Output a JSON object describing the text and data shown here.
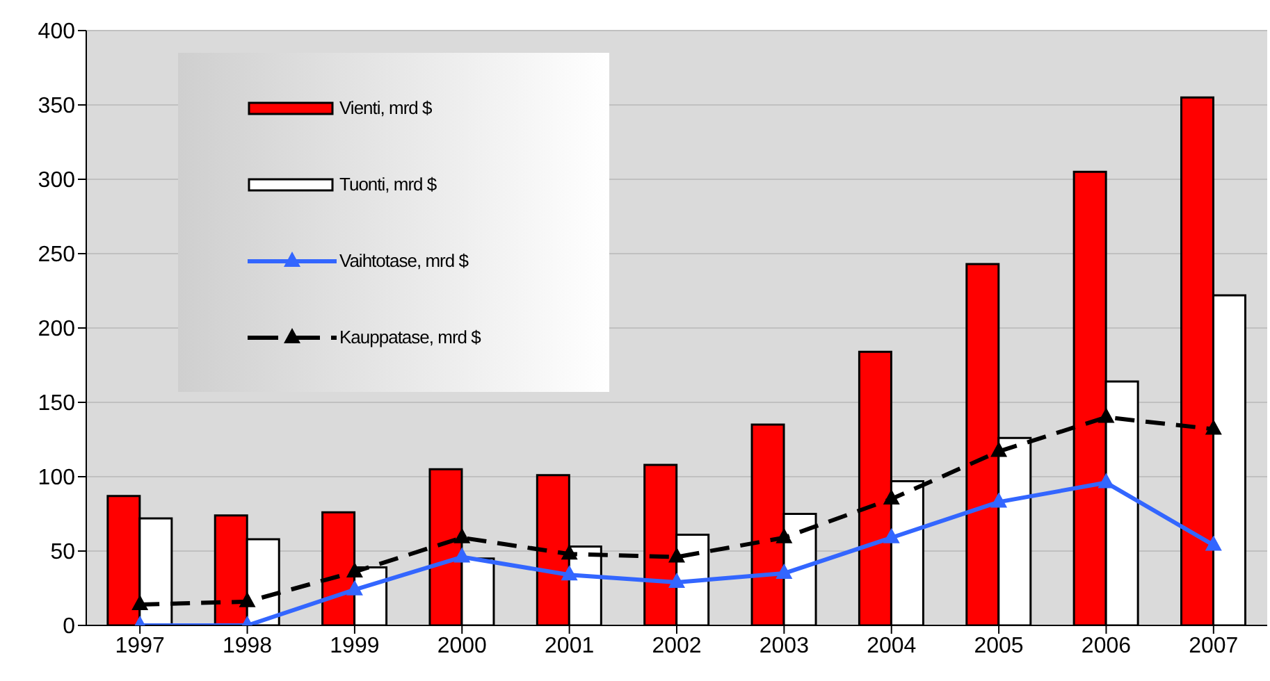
{
  "chart_data": {
    "type": "bar",
    "categories": [
      "1997",
      "1998",
      "1999",
      "2000",
      "2001",
      "2002",
      "2003",
      "2004",
      "2005",
      "2006",
      "2007"
    ],
    "series": [
      {
        "name": "Vienti, mrd $",
        "color": "#ff0000",
        "values": [
          87,
          74,
          76,
          105,
          101,
          108,
          135,
          184,
          243,
          305,
          355
        ]
      },
      {
        "name": "Tuonti, mrd $",
        "color": "#ffffff",
        "values": [
          72,
          58,
          39,
          45,
          53,
          61,
          75,
          97,
          126,
          164,
          222
        ]
      },
      {
        "name": "Vaihtotase, mrd $",
        "type": "line",
        "color": "#3366ff",
        "marker": "triangle",
        "line_style": "solid",
        "values": [
          0,
          0,
          24,
          46,
          34,
          29,
          35,
          59,
          83,
          96,
          54
        ]
      },
      {
        "name": "Kauppatase, mrd $",
        "type": "line",
        "color": "#000000",
        "marker": "triangle",
        "line_style": "dashed",
        "values": [
          14,
          16,
          36,
          59,
          48,
          46,
          59,
          85,
          117,
          140,
          132
        ]
      }
    ],
    "ylim": [
      0,
      400
    ],
    "yticks": [
      0,
      50,
      100,
      150,
      200,
      250,
      300,
      350,
      400
    ],
    "grid": "y",
    "legend": "top left"
  }
}
